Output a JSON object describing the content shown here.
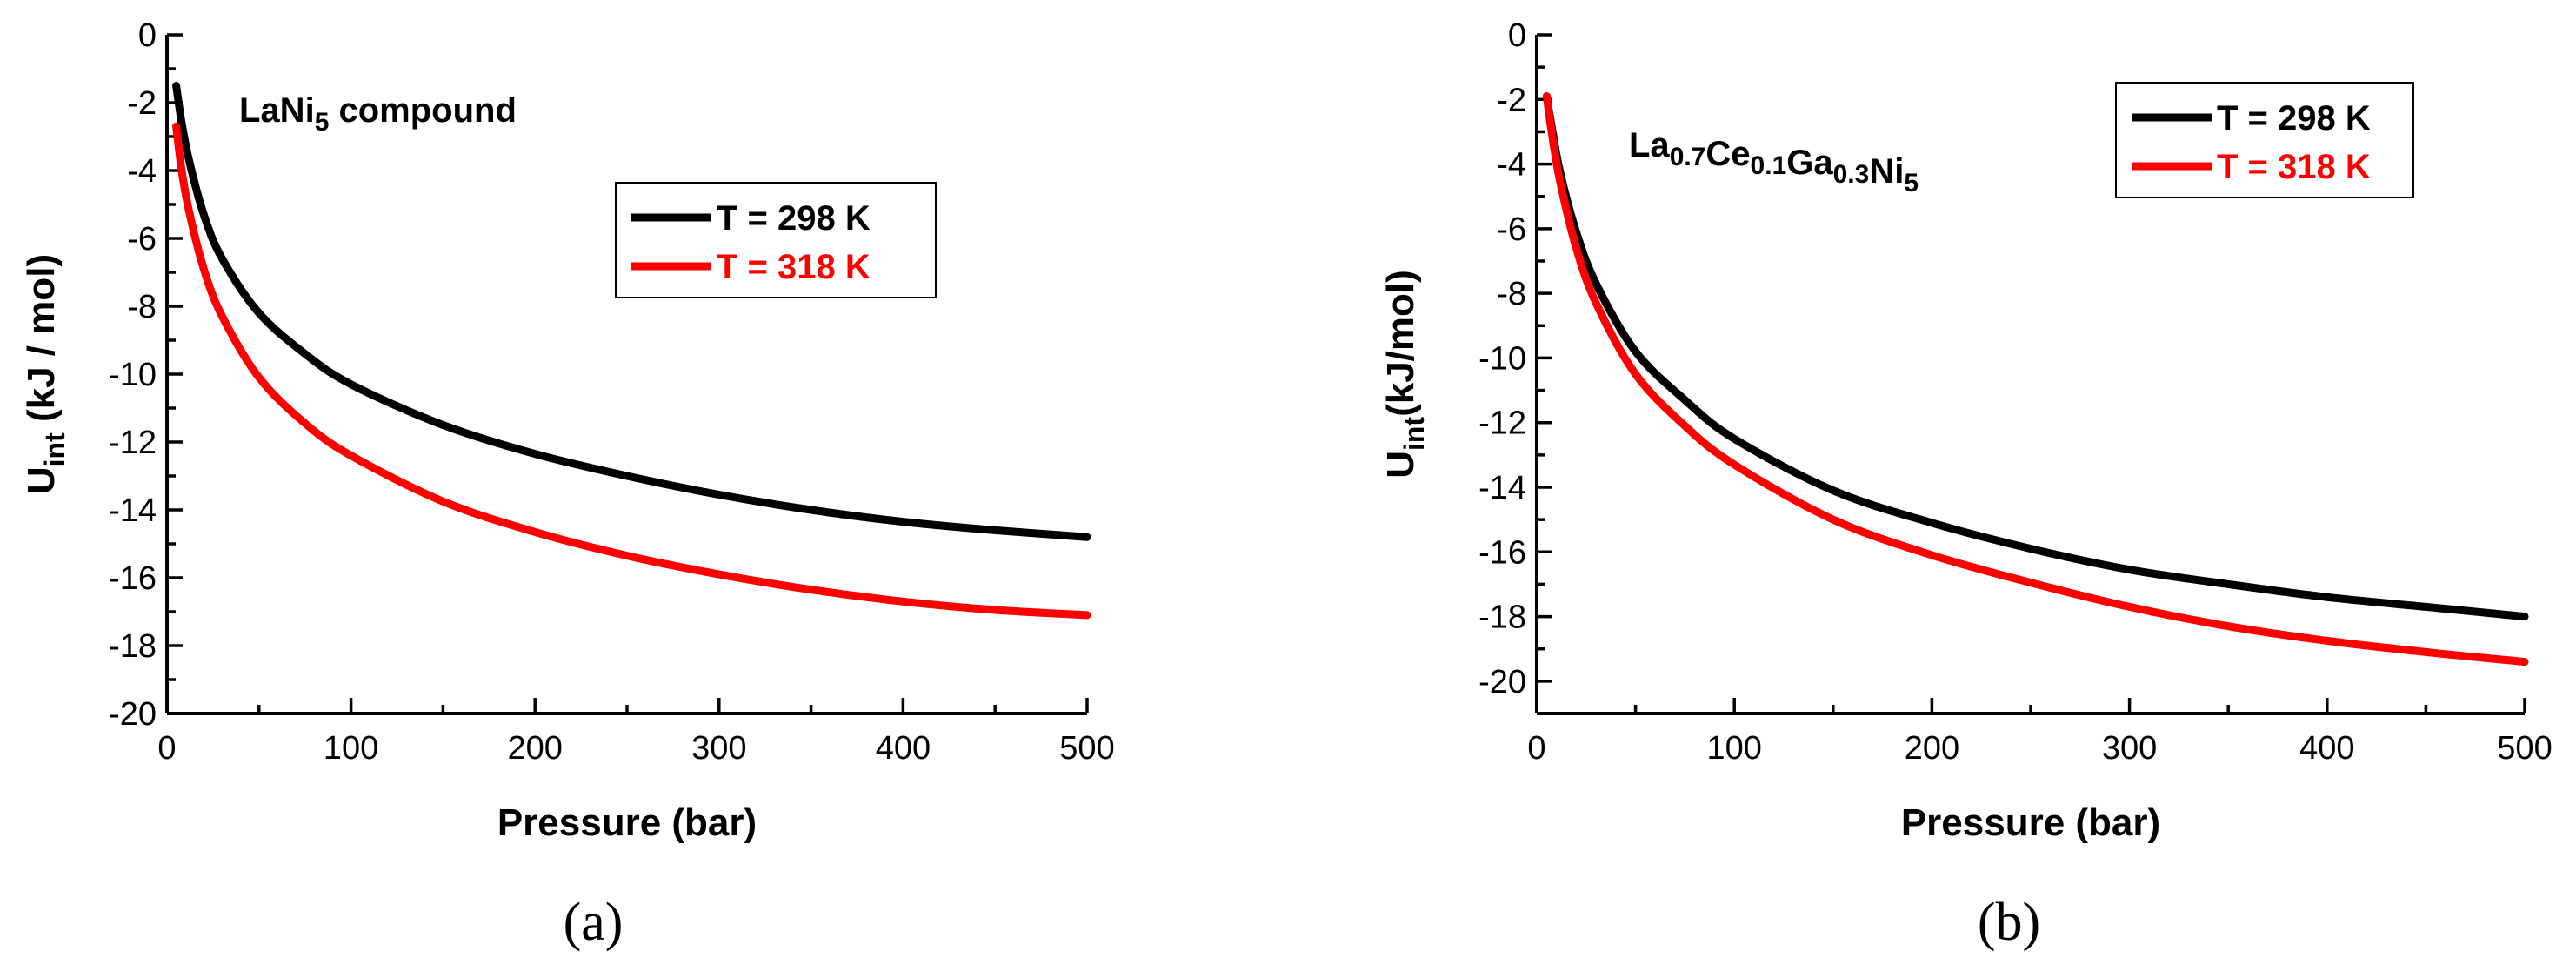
{
  "chart_data": [
    {
      "type": "line",
      "panel": "(a)",
      "caption": "(a)",
      "annotation": {
        "base": "LaNi",
        "sub": "5",
        "suffix": " compound"
      },
      "xlabel": "Pressure (bar)",
      "ylabel": {
        "base": "U",
        "sub": "int",
        "suffix": " (kJ / mol)"
      },
      "xlim": [
        0,
        500
      ],
      "ylim": [
        -20,
        0
      ],
      "xticks": [
        "0",
        "100",
        "200",
        "300",
        "400",
        "500"
      ],
      "yticks": [
        "0",
        "-2",
        "-4",
        "-6",
        "-8",
        "-10",
        "-12",
        "-14",
        "-16",
        "-18",
        "-20"
      ],
      "legend_position": "upper-right",
      "series": [
        {
          "name": "T = 298 K",
          "color": "#000000",
          "x": [
            5,
            8,
            12,
            20,
            30,
            50,
            75,
            100,
            150,
            200,
            250,
            300,
            350,
            400,
            450,
            500
          ],
          "y": [
            -1.5,
            -2.6,
            -3.7,
            -5.3,
            -6.6,
            -8.2,
            -9.4,
            -10.3,
            -11.5,
            -12.35,
            -13.0,
            -13.55,
            -14.0,
            -14.35,
            -14.6,
            -14.8
          ]
        },
        {
          "name": "T = 318 K",
          "color": "#ff0000",
          "x": [
            5,
            8,
            12,
            20,
            30,
            50,
            75,
            100,
            150,
            200,
            250,
            300,
            350,
            400,
            450,
            500
          ],
          "y": [
            -2.7,
            -4.0,
            -5.2,
            -6.9,
            -8.3,
            -10.1,
            -11.45,
            -12.4,
            -13.75,
            -14.65,
            -15.35,
            -15.9,
            -16.35,
            -16.7,
            -16.95,
            -17.1
          ]
        }
      ]
    },
    {
      "type": "line",
      "panel": "(b)",
      "caption": "(b)",
      "annotation": {
        "parts": [
          [
            "La",
            "0.7"
          ],
          [
            "Ce",
            "0.1"
          ],
          [
            "Ga",
            "0.3"
          ],
          [
            "Ni",
            "5"
          ]
        ]
      },
      "xlabel": "Pressure (bar)",
      "ylabel": {
        "base": "U",
        "sub": "int",
        "suffix": "(kJ/mol)"
      },
      "xlim": [
        0,
        500
      ],
      "ylim": [
        -21,
        0
      ],
      "xticks": [
        "0",
        "100",
        "200",
        "300",
        "400",
        "500"
      ],
      "yticks": [
        "0",
        "-2",
        "-4",
        "-6",
        "-8",
        "-10",
        "-12",
        "-14",
        "-16",
        "-18",
        "-20"
      ],
      "legend_position": "upper-right",
      "series": [
        {
          "name": "T = 298 K",
          "color": "#000000",
          "x": [
            5,
            8,
            12,
            20,
            30,
            50,
            75,
            100,
            150,
            200,
            250,
            300,
            350,
            400,
            450,
            500
          ],
          "y": [
            -1.9,
            -3.0,
            -4.3,
            -6.1,
            -7.7,
            -9.8,
            -11.3,
            -12.5,
            -14.1,
            -15.1,
            -15.9,
            -16.55,
            -17.0,
            -17.4,
            -17.7,
            -18.0
          ]
        },
        {
          "name": "T = 318 K",
          "color": "#ff0000",
          "x": [
            5,
            8,
            12,
            20,
            30,
            50,
            75,
            100,
            150,
            200,
            250,
            300,
            350,
            400,
            450,
            500
          ],
          "y": [
            -1.9,
            -3.2,
            -4.6,
            -6.6,
            -8.3,
            -10.5,
            -12.1,
            -13.3,
            -15.0,
            -16.1,
            -16.95,
            -17.7,
            -18.3,
            -18.75,
            -19.1,
            -19.4
          ]
        }
      ]
    }
  ]
}
